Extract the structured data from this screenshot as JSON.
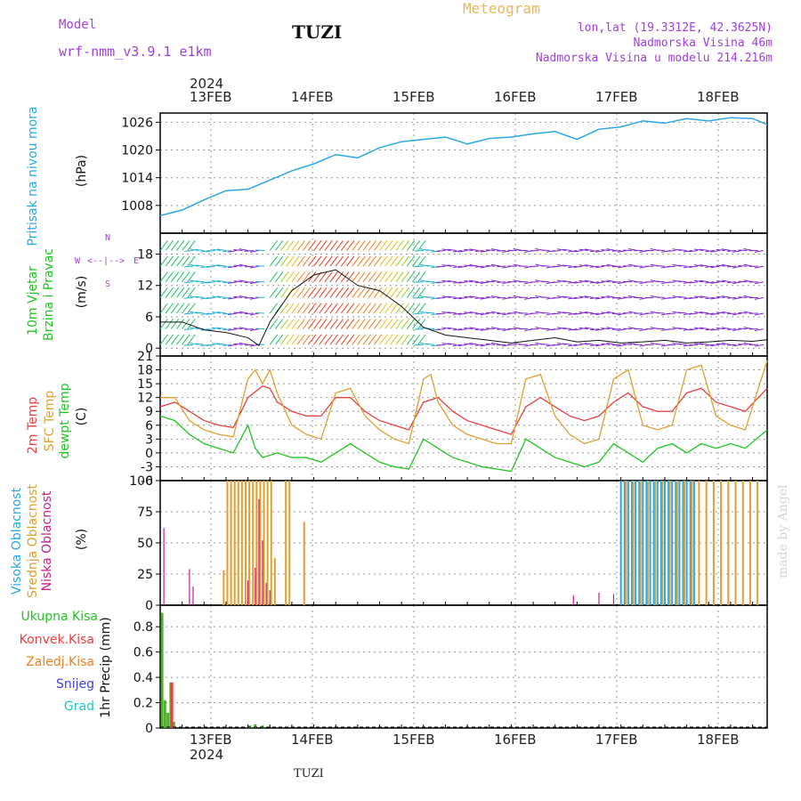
{
  "header": {
    "model_label": "Model",
    "model_name": "wrf-nmm_v3.9.1 e1km",
    "station": "TUZI",
    "meteogram": "Meteogram",
    "lonlat": "lon,lat (19.3312E, 42.3625N)",
    "elevation": "Nadmorska Visina 46m",
    "model_elevation": "Nadmorska Visina u modelu 214.216m",
    "top_year": "2024",
    "bottom_year": "2024",
    "footer_station": "TUZI",
    "watermark": "made by Angel"
  },
  "colors": {
    "pressure": "#2aa7e6",
    "temp2m": "#e84040",
    "sfctemp": "#e0a030",
    "dewpt": "#22c422",
    "high_cloud": "#2aa7e6",
    "mid_cloud": "#e0a030",
    "low_cloud": "#c0208c",
    "total_precip": "#4caf2e",
    "conv_precip": "#e84040",
    "purple_text": "#a040e0",
    "meteogram_text": "#e8b860"
  },
  "panel_labels": {
    "pressure": {
      "name": "Pritisak na nivou mora",
      "unit": "(hPa)"
    },
    "wind": {
      "name1": "10m Vjetar",
      "name2": "Brzina i Pravac",
      "unit": "(m/s)"
    },
    "compass": {
      "n": "N",
      "s": "S",
      "w": "W",
      "e": "E",
      "arrows": "<--|-->"
    },
    "temp": {
      "t2m": "2m Temp",
      "sfc": "SFC Temp",
      "dew": "dewpt Temp",
      "unit": "(C)"
    },
    "cloud": {
      "high": "Visoka Oblacnost",
      "mid": "Srednja Oblacnost",
      "low": "Niska Oblacnost",
      "unit": "(%)"
    },
    "precip": {
      "unit": "1hr Precip (mm)",
      "legend": [
        "Ukupna Kisa",
        "Konvek.Kisa",
        "Zaledj.Kisa",
        "Snijeg",
        "Grad"
      ],
      "legend_colors": [
        "#22c422",
        "#e84040",
        "#f08020",
        "#4040e0",
        "#22c4c4"
      ]
    }
  },
  "chart_data": [
    {
      "type": "line",
      "title": "Pritisak na nivou mora",
      "ylabel": "(hPa)",
      "x_dates": [
        "13FEB",
        "14FEB",
        "15FEB",
        "16FEB",
        "17FEB",
        "18FEB"
      ],
      "ylim": [
        1002,
        1028
      ],
      "yticks": [
        1008,
        1014,
        1020,
        1026
      ],
      "series": [
        {
          "name": "Pritisak",
          "x_hours": [
            0,
            6,
            12,
            18,
            24,
            30,
            36,
            42,
            48,
            54,
            60,
            66,
            72,
            78,
            84,
            90,
            96,
            102,
            108,
            114,
            120,
            126,
            132,
            138,
            144,
            150,
            156,
            162,
            166
          ],
          "values": [
            1005.8,
            1007,
            1009.2,
            1011.2,
            1011.5,
            1013.5,
            1015.5,
            1017,
            1019,
            1018.3,
            1020.5,
            1021.8,
            1022.3,
            1022.8,
            1021.3,
            1022.5,
            1022.8,
            1023.5,
            1024,
            1022.3,
            1024.5,
            1025,
            1026.3,
            1025.8,
            1026.8,
            1026.3,
            1027,
            1026.8,
            1025.5
          ]
        }
      ]
    },
    {
      "type": "line",
      "title": "10m Vjetar Brzina i Pravac",
      "ylabel": "(m/s)",
      "ylim": [
        -1.5,
        22
      ],
      "yticks": [
        0,
        6,
        12,
        18
      ],
      "series": [
        {
          "name": "Brzina",
          "x_hours": [
            0,
            6,
            12,
            18,
            24,
            27,
            30,
            36,
            42,
            48,
            54,
            60,
            66,
            72,
            78,
            84,
            90,
            96,
            102,
            108,
            114,
            120,
            126,
            132,
            138,
            144,
            150,
            156,
            162,
            166
          ],
          "values": [
            5,
            5,
            3.5,
            3,
            2,
            0.5,
            5,
            11,
            14,
            15,
            12,
            11,
            8,
            4,
            2.5,
            2,
            1.5,
            1,
            1.5,
            2,
            1.2,
            1.5,
            1,
            1.2,
            1.5,
            1,
            1.2,
            1.5,
            1.3,
            1.6
          ]
        }
      ]
    },
    {
      "type": "line",
      "title": "Temp",
      "ylabel": "(C)",
      "ylim": [
        -6,
        21
      ],
      "yticks": [
        -6,
        -3,
        0,
        3,
        6,
        9,
        12,
        15,
        18,
        21
      ],
      "series": [
        {
          "name": "2m Temp",
          "x_hours": [
            0,
            4,
            8,
            12,
            16,
            20,
            24,
            28,
            30,
            32,
            36,
            40,
            44,
            48,
            52,
            56,
            60,
            64,
            68,
            72,
            76,
            80,
            84,
            88,
            92,
            96,
            100,
            104,
            108,
            112,
            116,
            120,
            124,
            128,
            132,
            136,
            140,
            144,
            148,
            152,
            156,
            160,
            166
          ],
          "values": [
            10,
            11,
            9,
            7,
            6,
            5.5,
            12,
            14.5,
            14,
            11,
            9,
            8,
            8,
            12,
            12,
            9,
            7,
            6,
            5,
            11,
            12,
            9,
            7,
            6,
            5,
            4,
            10,
            12,
            10,
            8,
            7,
            8,
            11,
            13,
            10,
            9,
            9,
            13,
            14,
            11,
            10,
            9,
            14
          ]
        },
        {
          "name": "SFC Temp",
          "x_hours": [
            0,
            4,
            8,
            12,
            16,
            20,
            24,
            26,
            28,
            30,
            32,
            36,
            40,
            44,
            48,
            52,
            56,
            60,
            64,
            68,
            72,
            74,
            76,
            80,
            84,
            88,
            92,
            96,
            100,
            104,
            108,
            112,
            116,
            120,
            124,
            128,
            132,
            136,
            140,
            144,
            148,
            152,
            156,
            160,
            166
          ],
          "values": [
            12,
            12,
            7,
            5,
            4,
            3.5,
            16,
            18,
            15,
            18,
            13,
            6,
            4,
            3,
            13,
            14,
            8,
            5,
            3,
            2,
            16,
            17,
            11,
            6,
            4,
            3,
            2,
            2,
            16,
            17,
            8,
            4,
            2,
            3,
            16,
            18,
            6,
            5,
            6,
            18,
            19,
            8,
            6,
            5,
            20
          ]
        },
        {
          "name": "dewpt Temp",
          "x_hours": [
            0,
            4,
            8,
            12,
            16,
            20,
            22,
            24,
            26,
            28,
            32,
            36,
            40,
            44,
            48,
            52,
            56,
            60,
            64,
            68,
            72,
            76,
            80,
            84,
            88,
            92,
            96,
            100,
            104,
            108,
            112,
            116,
            120,
            124,
            128,
            132,
            136,
            140,
            144,
            148,
            152,
            156,
            160,
            166
          ],
          "values": [
            8,
            7,
            4,
            2,
            1,
            0,
            3,
            6,
            1,
            -1,
            0,
            -1,
            -1,
            -2,
            0,
            2,
            0,
            -2,
            -3,
            -3.5,
            3,
            1,
            -1,
            -2,
            -3,
            -3.5,
            -4,
            3,
            1,
            -1,
            -2,
            -3,
            -2,
            2,
            0,
            -2,
            1,
            2,
            0,
            2,
            1,
            2,
            1,
            5
          ]
        }
      ]
    },
    {
      "type": "bar",
      "title": "Oblacnost",
      "ylabel": "(%)",
      "ylim": [
        0,
        100
      ],
      "yticks": [
        0,
        25,
        50,
        75,
        100
      ],
      "series": [
        {
          "name": "Visoka Oblacnost",
          "x_hours": [
            126,
            127,
            128,
            129,
            130,
            131,
            132,
            133,
            134,
            135,
            136,
            137,
            138,
            139,
            140,
            141,
            142,
            143,
            144,
            145,
            146
          ],
          "values": [
            100,
            100,
            100,
            100,
            100,
            100,
            100,
            100,
            100,
            100,
            100,
            100,
            100,
            100,
            100,
            100,
            100,
            100,
            100,
            100,
            100
          ]
        },
        {
          "name": "Srednja Oblacnost",
          "x_hours": [
            17,
            18,
            19,
            20,
            21,
            22,
            23,
            24,
            25,
            26,
            27,
            28,
            29,
            30,
            31,
            34,
            35,
            39,
            127,
            129,
            131,
            133,
            135,
            137,
            139,
            141,
            143,
            145,
            147,
            149,
            151,
            153,
            155,
            157,
            159,
            161,
            163
          ],
          "values": [
            28,
            100,
            100,
            100,
            100,
            100,
            100,
            100,
            100,
            100,
            100,
            100,
            100,
            100,
            38,
            100,
            100,
            67,
            100,
            100,
            100,
            100,
            100,
            100,
            100,
            100,
            100,
            100,
            100,
            100,
            100,
            100,
            100,
            100,
            100,
            100,
            100
          ]
        },
        {
          "name": "Niska Oblacnost",
          "x_hours": [
            1,
            8,
            9,
            24,
            26,
            27,
            28,
            29,
            30,
            113,
            120,
            124
          ],
          "values": [
            62,
            29,
            15,
            20,
            30,
            85,
            52,
            18,
            12,
            8,
            10,
            9
          ]
        }
      ]
    },
    {
      "type": "bar",
      "title": "1hr Precip",
      "ylabel": "(mm)",
      "ylim": [
        0,
        0.97
      ],
      "yticks": [
        0,
        0.2,
        0.4,
        0.6,
        0.8
      ],
      "series": [
        {
          "name": "Ukupna Kisa",
          "x_hours": [
            0.5,
            1.3,
            2.1,
            2.9,
            3.7,
            24.5,
            26,
            28
          ],
          "values": [
            0.91,
            0.22,
            0.12,
            0.36,
            0.05,
            0.02,
            0.03,
            0.02
          ]
        },
        {
          "name": "Konvek.Kisa",
          "x_hours": [
            3.2
          ],
          "values": [
            0.36
          ]
        }
      ]
    }
  ]
}
